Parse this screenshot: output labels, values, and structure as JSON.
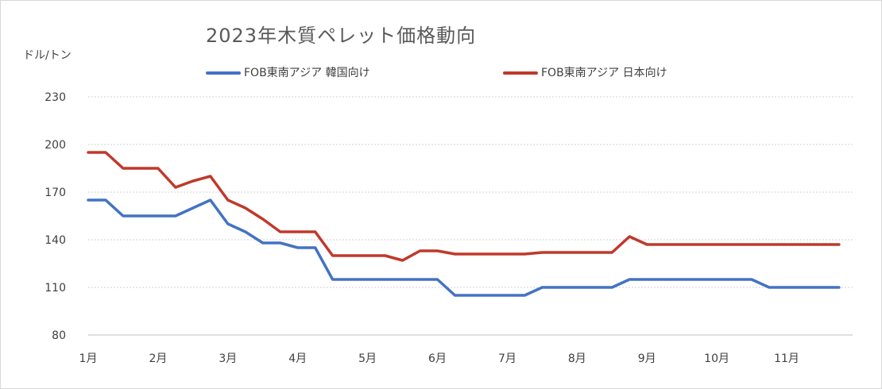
{
  "chart_data": {
    "type": "line",
    "title": "2023年木質ペレット価格動向",
    "ylabel": "ドル/トン",
    "ylim": [
      80,
      230
    ],
    "yticks": [
      80,
      110,
      140,
      170,
      200,
      230
    ],
    "xlim": [
      0,
      10.75
    ],
    "x_tick_labels": [
      "1月",
      "2月",
      "3月",
      "4月",
      "5月",
      "6月",
      "7月",
      "8月",
      "9月",
      "10月",
      "11月"
    ],
    "grid": true,
    "legend_position": "top",
    "series": [
      {
        "name": "FOB東南アジア 韓国向け",
        "color": "#4472c4",
        "points": [
          [
            0,
            165
          ],
          [
            0.25,
            165
          ],
          [
            0.5,
            155
          ],
          [
            0.75,
            155
          ],
          [
            1.0,
            155
          ],
          [
            1.25,
            155
          ],
          [
            1.5,
            160
          ],
          [
            1.75,
            165
          ],
          [
            2.0,
            150
          ],
          [
            2.25,
            145
          ],
          [
            2.5,
            138
          ],
          [
            2.75,
            138
          ],
          [
            3.0,
            135
          ],
          [
            3.25,
            135
          ],
          [
            3.5,
            115
          ],
          [
            3.75,
            115
          ],
          [
            4.0,
            115
          ],
          [
            4.25,
            115
          ],
          [
            4.5,
            115
          ],
          [
            4.75,
            115
          ],
          [
            5.0,
            115
          ],
          [
            5.25,
            105
          ],
          [
            5.5,
            105
          ],
          [
            5.75,
            105
          ],
          [
            6.0,
            105
          ],
          [
            6.25,
            105
          ],
          [
            6.5,
            110
          ],
          [
            6.75,
            110
          ],
          [
            7.0,
            110
          ],
          [
            7.25,
            110
          ],
          [
            7.5,
            110
          ],
          [
            7.75,
            115
          ],
          [
            8.0,
            115
          ],
          [
            8.25,
            115
          ],
          [
            8.5,
            115
          ],
          [
            8.75,
            115
          ],
          [
            9.0,
            115
          ],
          [
            9.25,
            115
          ],
          [
            9.5,
            115
          ],
          [
            9.75,
            110
          ],
          [
            10.0,
            110
          ],
          [
            10.25,
            110
          ],
          [
            10.5,
            110
          ],
          [
            10.75,
            110
          ]
        ]
      },
      {
        "name": "FOB東南アジア 日本向け",
        "color": "#c0392b",
        "points": [
          [
            0,
            195
          ],
          [
            0.25,
            195
          ],
          [
            0.5,
            185
          ],
          [
            0.75,
            185
          ],
          [
            1.0,
            185
          ],
          [
            1.25,
            173
          ],
          [
            1.5,
            177
          ],
          [
            1.75,
            180
          ],
          [
            2.0,
            165
          ],
          [
            2.25,
            160
          ],
          [
            2.5,
            153
          ],
          [
            2.75,
            145
          ],
          [
            3.0,
            145
          ],
          [
            3.25,
            145
          ],
          [
            3.5,
            130
          ],
          [
            3.75,
            130
          ],
          [
            4.0,
            130
          ],
          [
            4.25,
            130
          ],
          [
            4.5,
            127
          ],
          [
            4.75,
            133
          ],
          [
            5.0,
            133
          ],
          [
            5.25,
            131
          ],
          [
            5.5,
            131
          ],
          [
            5.75,
            131
          ],
          [
            6.0,
            131
          ],
          [
            6.25,
            131
          ],
          [
            6.5,
            132
          ],
          [
            6.75,
            132
          ],
          [
            7.0,
            132
          ],
          [
            7.25,
            132
          ],
          [
            7.5,
            132
          ],
          [
            7.75,
            142
          ],
          [
            8.0,
            137
          ],
          [
            8.25,
            137
          ],
          [
            8.5,
            137
          ],
          [
            8.75,
            137
          ],
          [
            9.0,
            137
          ],
          [
            9.25,
            137
          ],
          [
            9.5,
            137
          ],
          [
            9.75,
            137
          ],
          [
            10.0,
            137
          ],
          [
            10.25,
            137
          ],
          [
            10.5,
            137
          ],
          [
            10.75,
            137
          ]
        ]
      }
    ]
  }
}
